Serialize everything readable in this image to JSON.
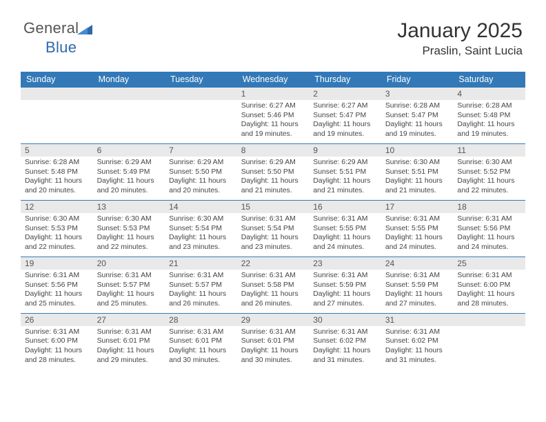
{
  "brand": {
    "name_a": "General",
    "name_b": "Blue"
  },
  "title": {
    "month": "January 2025",
    "location": "Praslin, Saint Lucia"
  },
  "colors": {
    "header_bg": "#3379b7",
    "header_text": "#ffffff",
    "daynum_bg": "#e9e9e9",
    "border": "#3379b7",
    "body_text": "#444444"
  },
  "day_headers": [
    "Sunday",
    "Monday",
    "Tuesday",
    "Wednesday",
    "Thursday",
    "Friday",
    "Saturday"
  ],
  "weeks": [
    [
      {
        "day": "",
        "l1": "",
        "l2": "",
        "l3": "",
        "l4": ""
      },
      {
        "day": "",
        "l1": "",
        "l2": "",
        "l3": "",
        "l4": ""
      },
      {
        "day": "",
        "l1": "",
        "l2": "",
        "l3": "",
        "l4": ""
      },
      {
        "day": "1",
        "l1": "Sunrise: 6:27 AM",
        "l2": "Sunset: 5:46 PM",
        "l3": "Daylight: 11 hours",
        "l4": "and 19 minutes."
      },
      {
        "day": "2",
        "l1": "Sunrise: 6:27 AM",
        "l2": "Sunset: 5:47 PM",
        "l3": "Daylight: 11 hours",
        "l4": "and 19 minutes."
      },
      {
        "day": "3",
        "l1": "Sunrise: 6:28 AM",
        "l2": "Sunset: 5:47 PM",
        "l3": "Daylight: 11 hours",
        "l4": "and 19 minutes."
      },
      {
        "day": "4",
        "l1": "Sunrise: 6:28 AM",
        "l2": "Sunset: 5:48 PM",
        "l3": "Daylight: 11 hours",
        "l4": "and 19 minutes."
      }
    ],
    [
      {
        "day": "5",
        "l1": "Sunrise: 6:28 AM",
        "l2": "Sunset: 5:48 PM",
        "l3": "Daylight: 11 hours",
        "l4": "and 20 minutes."
      },
      {
        "day": "6",
        "l1": "Sunrise: 6:29 AM",
        "l2": "Sunset: 5:49 PM",
        "l3": "Daylight: 11 hours",
        "l4": "and 20 minutes."
      },
      {
        "day": "7",
        "l1": "Sunrise: 6:29 AM",
        "l2": "Sunset: 5:50 PM",
        "l3": "Daylight: 11 hours",
        "l4": "and 20 minutes."
      },
      {
        "day": "8",
        "l1": "Sunrise: 6:29 AM",
        "l2": "Sunset: 5:50 PM",
        "l3": "Daylight: 11 hours",
        "l4": "and 21 minutes."
      },
      {
        "day": "9",
        "l1": "Sunrise: 6:29 AM",
        "l2": "Sunset: 5:51 PM",
        "l3": "Daylight: 11 hours",
        "l4": "and 21 minutes."
      },
      {
        "day": "10",
        "l1": "Sunrise: 6:30 AM",
        "l2": "Sunset: 5:51 PM",
        "l3": "Daylight: 11 hours",
        "l4": "and 21 minutes."
      },
      {
        "day": "11",
        "l1": "Sunrise: 6:30 AM",
        "l2": "Sunset: 5:52 PM",
        "l3": "Daylight: 11 hours",
        "l4": "and 22 minutes."
      }
    ],
    [
      {
        "day": "12",
        "l1": "Sunrise: 6:30 AM",
        "l2": "Sunset: 5:53 PM",
        "l3": "Daylight: 11 hours",
        "l4": "and 22 minutes."
      },
      {
        "day": "13",
        "l1": "Sunrise: 6:30 AM",
        "l2": "Sunset: 5:53 PM",
        "l3": "Daylight: 11 hours",
        "l4": "and 22 minutes."
      },
      {
        "day": "14",
        "l1": "Sunrise: 6:30 AM",
        "l2": "Sunset: 5:54 PM",
        "l3": "Daylight: 11 hours",
        "l4": "and 23 minutes."
      },
      {
        "day": "15",
        "l1": "Sunrise: 6:31 AM",
        "l2": "Sunset: 5:54 PM",
        "l3": "Daylight: 11 hours",
        "l4": "and 23 minutes."
      },
      {
        "day": "16",
        "l1": "Sunrise: 6:31 AM",
        "l2": "Sunset: 5:55 PM",
        "l3": "Daylight: 11 hours",
        "l4": "and 24 minutes."
      },
      {
        "day": "17",
        "l1": "Sunrise: 6:31 AM",
        "l2": "Sunset: 5:55 PM",
        "l3": "Daylight: 11 hours",
        "l4": "and 24 minutes."
      },
      {
        "day": "18",
        "l1": "Sunrise: 6:31 AM",
        "l2": "Sunset: 5:56 PM",
        "l3": "Daylight: 11 hours",
        "l4": "and 24 minutes."
      }
    ],
    [
      {
        "day": "19",
        "l1": "Sunrise: 6:31 AM",
        "l2": "Sunset: 5:56 PM",
        "l3": "Daylight: 11 hours",
        "l4": "and 25 minutes."
      },
      {
        "day": "20",
        "l1": "Sunrise: 6:31 AM",
        "l2": "Sunset: 5:57 PM",
        "l3": "Daylight: 11 hours",
        "l4": "and 25 minutes."
      },
      {
        "day": "21",
        "l1": "Sunrise: 6:31 AM",
        "l2": "Sunset: 5:57 PM",
        "l3": "Daylight: 11 hours",
        "l4": "and 26 minutes."
      },
      {
        "day": "22",
        "l1": "Sunrise: 6:31 AM",
        "l2": "Sunset: 5:58 PM",
        "l3": "Daylight: 11 hours",
        "l4": "and 26 minutes."
      },
      {
        "day": "23",
        "l1": "Sunrise: 6:31 AM",
        "l2": "Sunset: 5:59 PM",
        "l3": "Daylight: 11 hours",
        "l4": "and 27 minutes."
      },
      {
        "day": "24",
        "l1": "Sunrise: 6:31 AM",
        "l2": "Sunset: 5:59 PM",
        "l3": "Daylight: 11 hours",
        "l4": "and 27 minutes."
      },
      {
        "day": "25",
        "l1": "Sunrise: 6:31 AM",
        "l2": "Sunset: 6:00 PM",
        "l3": "Daylight: 11 hours",
        "l4": "and 28 minutes."
      }
    ],
    [
      {
        "day": "26",
        "l1": "Sunrise: 6:31 AM",
        "l2": "Sunset: 6:00 PM",
        "l3": "Daylight: 11 hours",
        "l4": "and 28 minutes."
      },
      {
        "day": "27",
        "l1": "Sunrise: 6:31 AM",
        "l2": "Sunset: 6:01 PM",
        "l3": "Daylight: 11 hours",
        "l4": "and 29 minutes."
      },
      {
        "day": "28",
        "l1": "Sunrise: 6:31 AM",
        "l2": "Sunset: 6:01 PM",
        "l3": "Daylight: 11 hours",
        "l4": "and 30 minutes."
      },
      {
        "day": "29",
        "l1": "Sunrise: 6:31 AM",
        "l2": "Sunset: 6:01 PM",
        "l3": "Daylight: 11 hours",
        "l4": "and 30 minutes."
      },
      {
        "day": "30",
        "l1": "Sunrise: 6:31 AM",
        "l2": "Sunset: 6:02 PM",
        "l3": "Daylight: 11 hours",
        "l4": "and 31 minutes."
      },
      {
        "day": "31",
        "l1": "Sunrise: 6:31 AM",
        "l2": "Sunset: 6:02 PM",
        "l3": "Daylight: 11 hours",
        "l4": "and 31 minutes."
      },
      {
        "day": "",
        "l1": "",
        "l2": "",
        "l3": "",
        "l4": ""
      }
    ]
  ]
}
